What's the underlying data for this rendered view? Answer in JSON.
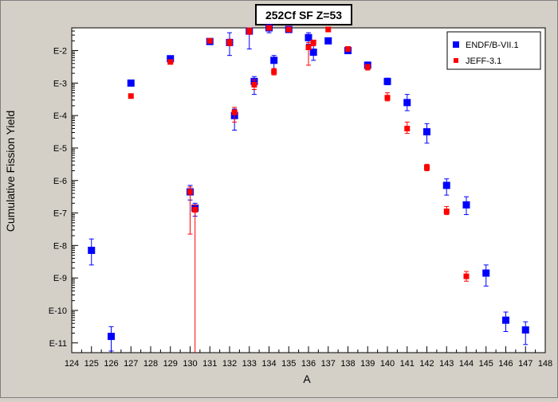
{
  "chart_data": {
    "type": "scatter",
    "title": "252Cf SF Z=53",
    "xlabel": "A",
    "ylabel": "Cumulative Fission Yield",
    "xlim": [
      124,
      148
    ],
    "ylim_log10": [
      -11.3,
      -1.3
    ],
    "y_scale": "log",
    "x_ticks": [
      124,
      125,
      126,
      127,
      128,
      129,
      130,
      131,
      132,
      133,
      134,
      135,
      136,
      137,
      138,
      139,
      140,
      141,
      142,
      143,
      144,
      145,
      146,
      147,
      148
    ],
    "y_ticks": [
      {
        "label": "E-2",
        "log10": -2
      },
      {
        "label": "E-3",
        "log10": -3
      },
      {
        "label": "E-4",
        "log10": -4
      },
      {
        "label": "E-5",
        "log10": -5
      },
      {
        "label": "E-6",
        "log10": -6
      },
      {
        "label": "E-7",
        "log10": -7
      },
      {
        "label": "E-8",
        "log10": -8
      },
      {
        "label": "E-9",
        "log10": -9
      },
      {
        "label": "E-10",
        "log10": -10
      },
      {
        "label": "E-11",
        "log10": -11
      }
    ],
    "grid": false,
    "legend_position": "top-right",
    "series": [
      {
        "name": "ENDF/B-VII.1",
        "color": "#0000ff",
        "marker": "square",
        "points": [
          {
            "x": 125,
            "log10y": -8.15,
            "err_lo": -8.6,
            "err_hi": -7.8
          },
          {
            "x": 126,
            "log10y": -10.8,
            "err_lo": -11.25,
            "err_hi": -10.5
          },
          {
            "x": 127,
            "log10y": -3.0,
            "err_lo": -3.0,
            "err_hi": -3.0
          },
          {
            "x": 129,
            "log10y": -2.25,
            "err_lo": -2.3,
            "err_hi": -2.2
          },
          {
            "x": 130,
            "log10y": -6.35,
            "err_lo": -6.6,
            "err_hi": -6.15
          },
          {
            "x": 130.25,
            "log10y": -6.85,
            "err_lo": -7.1,
            "err_hi": -6.7
          },
          {
            "x": 131,
            "log10y": -1.72,
            "err_lo": -1.8,
            "err_hi": -1.65
          },
          {
            "x": 132,
            "log10y": -1.75,
            "err_lo": -2.15,
            "err_hi": -1.45
          },
          {
            "x": 132.25,
            "log10y": -4.0,
            "err_lo": -4.45,
            "err_hi": -3.8
          },
          {
            "x": 133,
            "log10y": -1.4,
            "err_lo": -1.95,
            "err_hi": -1.3
          },
          {
            "x": 133.25,
            "log10y": -2.95,
            "err_lo": -3.35,
            "err_hi": -2.8
          },
          {
            "x": 134,
            "log10y": -1.3,
            "err_lo": -1.45,
            "err_hi": -1.2
          },
          {
            "x": 134.25,
            "log10y": -2.3,
            "err_lo": -2.6,
            "err_hi": -2.15
          },
          {
            "x": 135,
            "log10y": -1.35,
            "err_lo": -1.4,
            "err_hi": -1.3
          },
          {
            "x": 136,
            "log10y": -1.6,
            "err_lo": -1.8,
            "err_hi": -1.45
          },
          {
            "x": 136.25,
            "log10y": -2.05,
            "err_lo": -2.3,
            "err_hi": -1.85
          },
          {
            "x": 137,
            "log10y": -1.7,
            "err_lo": -1.75,
            "err_hi": -1.65
          },
          {
            "x": 138,
            "log10y": -2.0,
            "err_lo": -2.05,
            "err_hi": -1.95
          },
          {
            "x": 139,
            "log10y": -2.45,
            "err_lo": -2.55,
            "err_hi": -2.35
          },
          {
            "x": 140,
            "log10y": -2.95,
            "err_lo": -3.05,
            "err_hi": -2.85
          },
          {
            "x": 141,
            "log10y": -3.6,
            "err_lo": -3.85,
            "err_hi": -3.35
          },
          {
            "x": 142,
            "log10y": -4.5,
            "err_lo": -4.85,
            "err_hi": -4.25
          },
          {
            "x": 143,
            "log10y": -6.15,
            "err_lo": -6.45,
            "err_hi": -5.95
          },
          {
            "x": 144,
            "log10y": -6.75,
            "err_lo": -7.05,
            "err_hi": -6.5
          },
          {
            "x": 145,
            "log10y": -8.85,
            "err_lo": -9.25,
            "err_hi": -8.6
          },
          {
            "x": 146,
            "log10y": -10.3,
            "err_lo": -10.65,
            "err_hi": -10.05
          },
          {
            "x": 147,
            "log10y": -10.6,
            "err_lo": -11.05,
            "err_hi": -10.35
          }
        ]
      },
      {
        "name": "JEFF-3.1",
        "color": "#ff0000",
        "marker": "square",
        "points": [
          {
            "x": 127,
            "log10y": -3.4,
            "err_lo": -3.4,
            "err_hi": -3.4
          },
          {
            "x": 129,
            "log10y": -2.35,
            "err_lo": -2.35,
            "err_hi": -2.35
          },
          {
            "x": 130,
            "log10y": -6.35,
            "err_lo": -7.65,
            "err_hi": -6.2
          },
          {
            "x": 130.25,
            "log10y": -6.9,
            "err_lo": -11.3,
            "err_hi": -6.75
          },
          {
            "x": 131,
            "log10y": -1.7,
            "err_lo": -1.75,
            "err_hi": -1.65
          },
          {
            "x": 132,
            "log10y": -1.75,
            "err_lo": -1.85,
            "err_hi": -1.65
          },
          {
            "x": 132.25,
            "log10y": -3.9,
            "err_lo": -4.2,
            "err_hi": -3.75
          },
          {
            "x": 133,
            "log10y": -1.4,
            "err_lo": -1.5,
            "err_hi": -1.3
          },
          {
            "x": 133.25,
            "log10y": -3.05,
            "err_lo": -3.2,
            "err_hi": -2.9
          },
          {
            "x": 134,
            "log10y": -1.3,
            "err_lo": -1.35,
            "err_hi": -1.25
          },
          {
            "x": 134.25,
            "log10y": -2.65,
            "err_lo": -2.75,
            "err_hi": -2.55
          },
          {
            "x": 135,
            "log10y": -1.35,
            "err_lo": -1.4,
            "err_hi": -1.3
          },
          {
            "x": 136,
            "log10y": -1.9,
            "err_lo": -2.45,
            "err_hi": -1.75
          },
          {
            "x": 136.25,
            "log10y": -1.75,
            "err_lo": -1.85,
            "err_hi": -1.7
          },
          {
            "x": 137,
            "log10y": -1.35,
            "err_lo": -1.35,
            "err_hi": -1.35
          },
          {
            "x": 138,
            "log10y": -1.95,
            "err_lo": -2.0,
            "err_hi": -1.9
          },
          {
            "x": 139,
            "log10y": -2.5,
            "err_lo": -2.6,
            "err_hi": -2.45
          },
          {
            "x": 140,
            "log10y": -3.45,
            "err_lo": -3.55,
            "err_hi": -3.3
          },
          {
            "x": 141,
            "log10y": -4.4,
            "err_lo": -4.55,
            "err_hi": -4.2
          },
          {
            "x": 142,
            "log10y": -5.6,
            "err_lo": -5.7,
            "err_hi": -5.5
          },
          {
            "x": 143,
            "log10y": -6.95,
            "err_lo": -7.05,
            "err_hi": -6.8
          },
          {
            "x": 144,
            "log10y": -8.95,
            "err_lo": -9.1,
            "err_hi": -8.8
          }
        ]
      }
    ]
  }
}
